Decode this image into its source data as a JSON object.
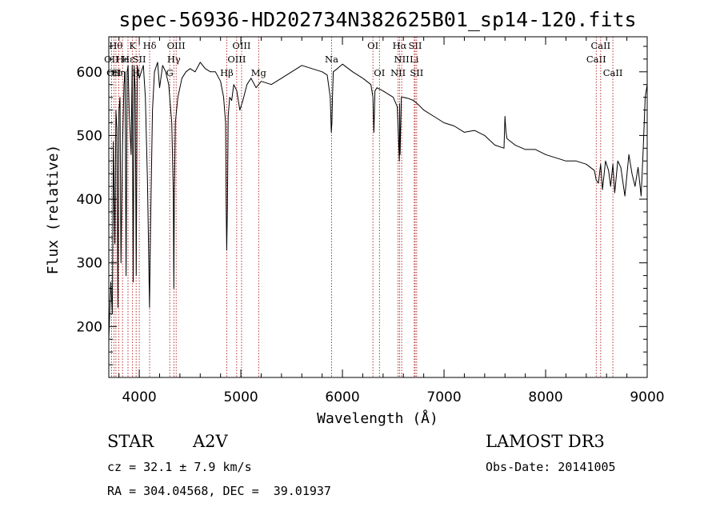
{
  "chart_data": {
    "type": "line",
    "title": "spec-56936-HD202734N382625B01_sp14-120.fits",
    "xlabel": "Wavelength (Å)",
    "ylabel": "Flux (relative)",
    "xlim": [
      3700,
      9000
    ],
    "ylim": [
      120,
      655
    ],
    "xticks": [
      4000,
      5000,
      6000,
      7000,
      8000,
      9000
    ],
    "yticks": [
      200,
      300,
      400,
      500,
      600
    ],
    "grid": false,
    "legend": "none",
    "line_color": "#000000",
    "marker_color": "#aa0000",
    "series": [
      {
        "x": [
          3700,
          3720,
          3735,
          3745,
          3760,
          3770,
          3780,
          3790,
          3800,
          3810,
          3820,
          3835,
          3850,
          3860,
          3870,
          3880,
          3890,
          3900,
          3920,
          3930,
          3940,
          3950,
          3960,
          3970,
          3980,
          3990,
          4000,
          4020,
          4040,
          4060,
          4080,
          4090,
          4101,
          4110,
          4130,
          4150,
          4180,
          4200,
          4230,
          4260,
          4290,
          4320,
          4335,
          4340,
          4345,
          4355,
          4380,
          4420,
          4460,
          4500,
          4550,
          4600,
          4650,
          4700,
          4750,
          4800,
          4830,
          4850,
          4855,
          4861,
          4868,
          4875,
          4890,
          4910,
          4930,
          4960,
          4990,
          5020,
          5060,
          5100,
          5150,
          5200,
          5300,
          5400,
          5500,
          5600,
          5700,
          5800,
          5850,
          5880,
          5890,
          5896,
          5902,
          5910,
          5950,
          6000,
          6100,
          6200,
          6280,
          6300,
          6310,
          6320,
          6340,
          6400,
          6450,
          6500,
          6540,
          6560,
          6563,
          6567,
          6580,
          6600,
          6650,
          6700,
          6750,
          6800,
          6900,
          7000,
          7100,
          7200,
          7300,
          7400,
          7500,
          7590,
          7600,
          7610,
          7620,
          7700,
          7800,
          7900,
          8000,
          8100,
          8200,
          8300,
          8400,
          8480,
          8498,
          8520,
          8542,
          8560,
          8590,
          8620,
          8640,
          8662,
          8680,
          8710,
          8740,
          8780,
          8820,
          8850,
          8880,
          8910,
          8940,
          8960,
          8980,
          9000
        ],
        "y": [
          180,
          270,
          220,
          490,
          330,
          540,
          510,
          230,
          540,
          560,
          300,
          480,
          580,
          600,
          280,
          600,
          610,
          540,
          470,
          610,
          270,
          610,
          570,
          280,
          610,
          600,
          590,
          600,
          610,
          560,
          430,
          340,
          230,
          350,
          540,
          600,
          615,
          575,
          610,
          600,
          580,
          520,
          410,
          260,
          400,
          520,
          560,
          590,
          600,
          605,
          600,
          615,
          605,
          600,
          600,
          585,
          560,
          520,
          390,
          320,
          390,
          530,
          560,
          555,
          580,
          570,
          540,
          555,
          580,
          590,
          575,
          585,
          580,
          590,
          600,
          610,
          605,
          600,
          595,
          560,
          505,
          520,
          560,
          600,
          605,
          612,
          600,
          590,
          580,
          560,
          505,
          570,
          575,
          570,
          565,
          560,
          545,
          460,
          550,
          470,
          560,
          560,
          558,
          555,
          548,
          540,
          530,
          520,
          515,
          505,
          508,
          500,
          485,
          480,
          530,
          505,
          495,
          485,
          478,
          478,
          470,
          465,
          460,
          460,
          455,
          445,
          430,
          425,
          455,
          415,
          460,
          445,
          420,
          455,
          410,
          460,
          450,
          405,
          470,
          440,
          420,
          450,
          405,
          475,
          560,
          580
        ],
        "name": ""
      }
    ],
    "line_markers": [
      {
        "x": 3727,
        "label": "OII",
        "row": 2
      },
      {
        "x": 3750,
        "label": "OII",
        "row": 3
      },
      {
        "x": 3770,
        "label": "Hθ",
        "row": 1
      },
      {
        "x": 3798,
        "label": "Hη",
        "row": 3
      },
      {
        "x": 3835,
        "label": "He",
        "row": 2
      },
      {
        "x": 3889,
        "label": "Hε",
        "row": 2
      },
      {
        "x": 3934,
        "label": "K",
        "row": 1
      },
      {
        "x": 3969,
        "label": "H",
        "row": 3
      },
      {
        "x": 4000,
        "label": "SII",
        "row": 2
      },
      {
        "x": 4102,
        "label": "Hδ",
        "row": 1
      },
      {
        "x": 4300,
        "label": "G",
        "row": 3
      },
      {
        "x": 4340,
        "label": "Hγ",
        "row": 2
      },
      {
        "x": 4363,
        "label": "OIII",
        "row": 1
      },
      {
        "x": 4861,
        "label": "Hβ",
        "row": 3
      },
      {
        "x": 4959,
        "label": "OIII",
        "row": 2
      },
      {
        "x": 5007,
        "label": "OIII",
        "row": 1
      },
      {
        "x": 5175,
        "label": "Mg",
        "row": 3
      },
      {
        "x": 5893,
        "label": "Na",
        "row": 2
      },
      {
        "x": 6300,
        "label": "OI",
        "row": 1
      },
      {
        "x": 6364,
        "label": "OI",
        "row": 3
      },
      {
        "x": 6548,
        "label": "NII",
        "row": 3
      },
      {
        "x": 6563,
        "label": "Hα",
        "row": 1
      },
      {
        "x": 6583,
        "label": "NII",
        "row": 2
      },
      {
        "x": 6716,
        "label": "SII",
        "row": 1
      },
      {
        "x": 6707,
        "label": "Li",
        "row": 2
      },
      {
        "x": 6731,
        "label": "SII",
        "row": 3
      },
      {
        "x": 8498,
        "label": "CaII",
        "row": 2
      },
      {
        "x": 8542,
        "label": "CaII",
        "row": 1
      },
      {
        "x": 8662,
        "label": "CaII",
        "row": 3
      }
    ]
  },
  "info": {
    "object_class": "STAR",
    "subclass": "A2V",
    "survey": "LAMOST DR3",
    "cz": "cz = 32.1 ± 7.9 km/s",
    "obs_date": "Obs-Date: 20141005",
    "coords": "RA = 304.04568, DEC =  39.01937"
  }
}
